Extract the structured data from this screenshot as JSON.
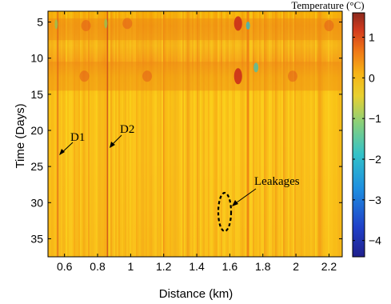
{
  "chart_data": {
    "type": "heatmap",
    "xlabel": "Distance (km)",
    "ylabel": "Time (Days)",
    "xlim": [
      0.5,
      2.28
    ],
    "ylim": [
      3.5,
      37.5
    ],
    "y_direction": "down",
    "x_ticks": [
      0.6,
      0.8,
      1,
      1.2,
      1.4,
      1.6,
      1.8,
      2,
      2.2
    ],
    "x_tick_labels": [
      "0.6",
      "0.8",
      "1",
      "1.2",
      "1.4",
      "1.6",
      "1.8",
      "2",
      "2.2"
    ],
    "y_ticks": [
      5,
      10,
      15,
      20,
      25,
      30,
      35
    ],
    "y_tick_labels": [
      "5",
      "10",
      "15",
      "20",
      "25",
      "30",
      "35"
    ],
    "colorbar": {
      "title": "Temperature (°C)",
      "range": [
        -4.4,
        1.6
      ],
      "ticks": [
        1,
        0,
        -1,
        -2,
        -3,
        -4
      ],
      "tick_labels": [
        "1",
        "0",
        "−1",
        "−2",
        "−3",
        "−4"
      ],
      "colormap": "jet"
    },
    "annotations": [
      {
        "text": "D1",
        "arrow_to": [
          0.56,
          23
        ]
      },
      {
        "text": "D2",
        "arrow_to": [
          0.86,
          22.5
        ]
      },
      {
        "text": "Leakages",
        "arrow_to": [
          1.6,
          30.5
        ]
      }
    ],
    "highlight_ellipse": {
      "center": [
        1.58,
        30
      ],
      "x_radius": 0.03,
      "y_radius": 2.5,
      "style": "dashed"
    },
    "features": {
      "warm_bands_days": [
        [
          4.5,
          7.5
        ],
        [
          10.5,
          14.5
        ]
      ],
      "hot_spot_distance_km": 1.65,
      "cold_spot_distance_km": 1.71
    }
  }
}
